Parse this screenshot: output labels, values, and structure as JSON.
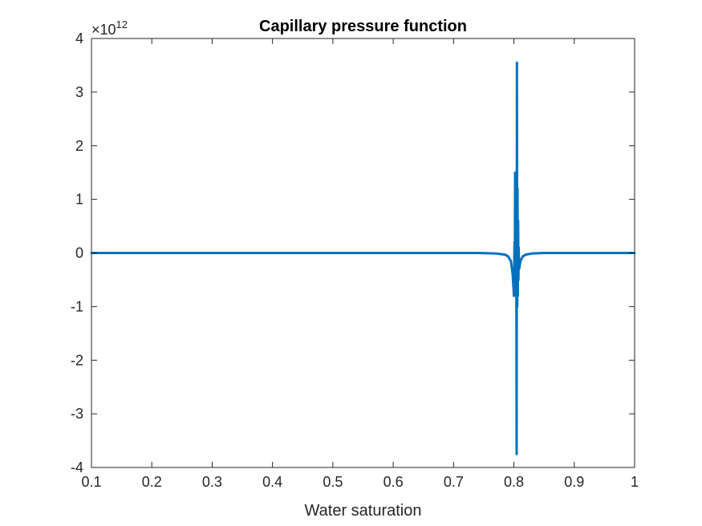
{
  "chart_data": {
    "type": "line",
    "title": "Capillary pressure function",
    "xlabel": "Water saturation",
    "ylabel": "",
    "xlim": [
      0.1,
      1
    ],
    "ylim": [
      -4000000000000.0,
      4000000000000.0
    ],
    "xticks": [
      0.1,
      0.2,
      0.3,
      0.4,
      0.5,
      0.6,
      0.7,
      0.8,
      0.9,
      1
    ],
    "xtick_labels": [
      "0.1",
      "0.2",
      "0.3",
      "0.4",
      "0.5",
      "0.6",
      "0.7",
      "0.8",
      "0.9",
      "1"
    ],
    "yticks": [
      -4,
      -3,
      -2,
      -1,
      0,
      1,
      2,
      3,
      4
    ],
    "ytick_labels": [
      "-4",
      "-3",
      "-2",
      "-1",
      "0",
      "1",
      "2",
      "3",
      "4"
    ],
    "y_exponent_base": "×10",
    "y_exponent_power": "12",
    "grid": false,
    "series": [
      {
        "color": "#0072BD",
        "x": [
          0.1,
          0.5,
          0.74,
          0.77,
          0.785,
          0.79,
          0.795,
          0.798,
          0.8,
          0.801,
          0.8015,
          0.802,
          0.8025,
          0.803,
          0.8035,
          0.804,
          0.8045,
          0.805,
          0.8055,
          0.806,
          0.8065,
          0.807,
          0.8075,
          0.808,
          0.8085,
          0.809,
          0.81,
          0.812,
          0.815,
          0.82,
          0.83,
          0.85,
          0.9,
          1.0
        ],
        "y": [
          0,
          0,
          0,
          -0.01,
          -0.03,
          -0.06,
          -0.15,
          -0.4,
          -0.8,
          0.2,
          -0.6,
          1.5,
          -0.3,
          0.9,
          -0.5,
          0.3,
          -3.75,
          3.55,
          -1.0,
          1.2,
          -0.8,
          0.6,
          -0.5,
          0.1,
          -0.3,
          -0.28,
          -0.2,
          -0.12,
          -0.06,
          -0.03,
          -0.01,
          0,
          0,
          0
        ]
      }
    ]
  }
}
